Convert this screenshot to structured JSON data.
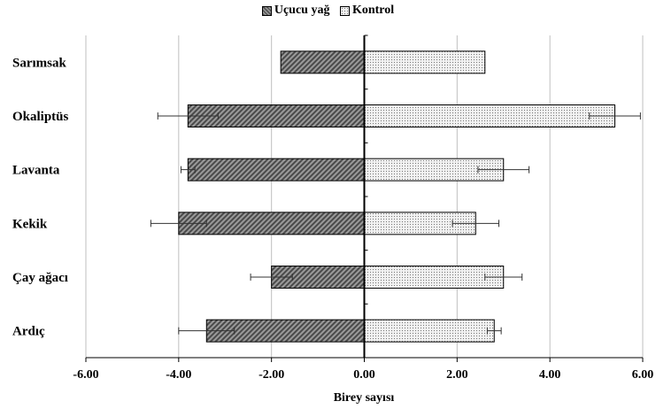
{
  "chart_data": {
    "type": "bar",
    "orientation": "horizontal",
    "title": "",
    "xlabel": "Birey sayısı",
    "ylabel": "",
    "xlim": [
      -6,
      6
    ],
    "xticks": [
      "-6.00",
      "-4.00",
      "-2.00",
      "0.00",
      "2.00",
      "4.00",
      "6.00"
    ],
    "grid": true,
    "legend_position": "top",
    "categories": [
      "Sarımsak",
      "Okaliptüs",
      "Lavanta",
      "Kekik",
      "Çay ağacı",
      "Ardıç"
    ],
    "series": [
      {
        "name": "Uçucu yağ",
        "values": [
          -1.8,
          -3.8,
          -3.8,
          -4.0,
          -2.0,
          -3.4
        ],
        "errors": [
          0,
          0.65,
          0.15,
          0.6,
          0.45,
          0.6
        ],
        "pattern": "dark-diagonal"
      },
      {
        "name": "Kontrol",
        "values": [
          2.6,
          5.4,
          3.0,
          2.4,
          3.0,
          2.8
        ],
        "errors": [
          0,
          0.55,
          0.55,
          0.5,
          0.4,
          0.15
        ],
        "pattern": "light-dotted"
      }
    ]
  },
  "colors": {
    "dark_fill": "#9a9a9a",
    "dark_stripe": "#4a4a4a",
    "light_fill": "#f2f2f2",
    "grid": "#bfbfbf",
    "axis": "#000000"
  }
}
